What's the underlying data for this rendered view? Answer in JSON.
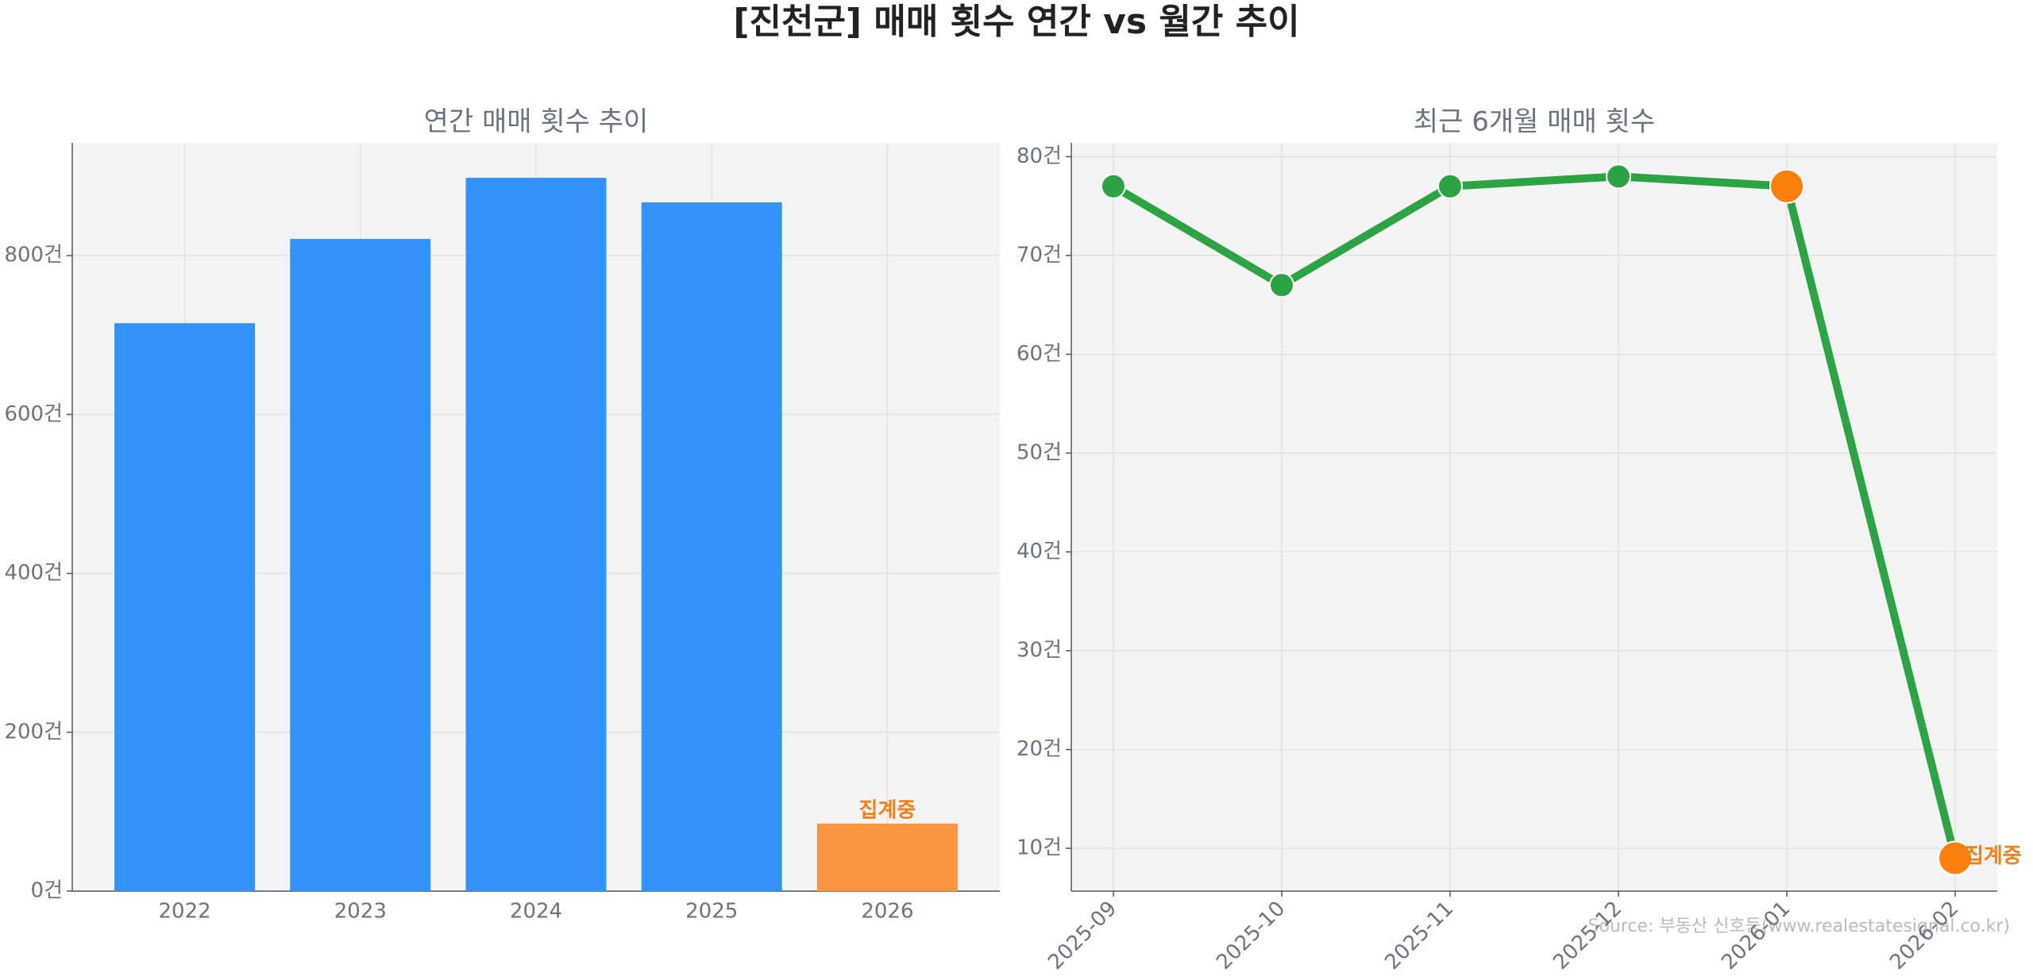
{
  "title": "[진천군] 매매 횟수 연간 vs 월간 추이",
  "source": "Source: 부동산 신호등(www.realestatesignal.co.kr)",
  "chart_data": [
    {
      "type": "bar",
      "title": "연간 매매 횟수 추이",
      "categories": [
        "2022",
        "2023",
        "2024",
        "2025",
        "2026"
      ],
      "values": [
        715,
        821,
        898,
        867,
        85
      ],
      "colors": [
        "#3392fa",
        "#3392fa",
        "#3392fa",
        "#3392fa",
        "#f9953e"
      ],
      "annotation": "집계중",
      "annotation_color": "#f57f17",
      "ylim": [
        0,
        942
      ],
      "yticks": [
        {
          "value": 0,
          "label": "0건"
        },
        {
          "value": 200,
          "label": "200건"
        },
        {
          "value": 400,
          "label": "400건"
        },
        {
          "value": 600,
          "label": "600건"
        },
        {
          "value": 800,
          "label": "800건"
        }
      ],
      "grid": true
    },
    {
      "type": "line",
      "title": "최근 6개월 매매 횟수",
      "categories": [
        "2025-09",
        "2025-10",
        "2025-11",
        "2025-12",
        "2026-01",
        "2026-02"
      ],
      "values": [
        77,
        67,
        77,
        78,
        77,
        9
      ],
      "color": "#2ca444",
      "marker_colors": [
        "#2ca444",
        "#2ca444",
        "#2ca444",
        "#2ca444",
        "#fd7f0e",
        "#fd7f0e"
      ],
      "annotation": "집계중",
      "annotation_color": "#f57f17",
      "ylim": [
        5.67,
        81.4
      ],
      "yticks": [
        {
          "value": 10,
          "label": "10건"
        },
        {
          "value": 20,
          "label": "20건"
        },
        {
          "value": 30,
          "label": "30건"
        },
        {
          "value": 40,
          "label": "40건"
        },
        {
          "value": 50,
          "label": "50건"
        },
        {
          "value": 60,
          "label": "60건"
        },
        {
          "value": 70,
          "label": "70건"
        },
        {
          "value": 80,
          "label": "80건"
        }
      ],
      "grid": true
    }
  ]
}
